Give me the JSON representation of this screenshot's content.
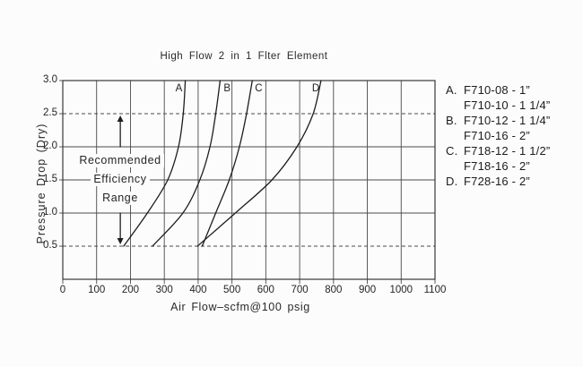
{
  "chart_data": {
    "type": "line",
    "title": "High Flow 2 in 1 Flter Element",
    "xlabel": "Air Flow–scfm@100 psig",
    "ylabel": "Pressure Drop (Dry)",
    "xlim": [
      0,
      1100
    ],
    "ylim": [
      0,
      3
    ],
    "grid": true,
    "legend_position": "right",
    "x_ticks": [
      0,
      100,
      200,
      300,
      400,
      500,
      600,
      700,
      800,
      900,
      1000,
      1100
    ],
    "y_ticks": [
      {
        "value": 0.5,
        "label": "0.5"
      },
      {
        "value": 1.0,
        "label": "1.0"
      },
      {
        "value": 1.5,
        "label": "1.5"
      },
      {
        "value": 2.0,
        "label": "2.0"
      },
      {
        "value": 2.5,
        "label": "2.5"
      },
      {
        "value": 3.0,
        "label": "3.0"
      }
    ],
    "y_gridlines": [
      {
        "value": 0.5,
        "style": "dashed"
      },
      {
        "value": 1.0,
        "style": "solid"
      },
      {
        "value": 1.5,
        "style": "solid"
      },
      {
        "value": 2.0,
        "style": "solid"
      },
      {
        "value": 2.5,
        "style": "dashed"
      }
    ],
    "series": [
      {
        "name": "A",
        "label_dx": -11,
        "points": [
          [
            180,
            0.5
          ],
          [
            250,
            1.0
          ],
          [
            310,
            1.5
          ],
          [
            342,
            2.0
          ],
          [
            356,
            2.5
          ],
          [
            362,
            3.0
          ]
        ]
      },
      {
        "name": "B",
        "label_dx": 4,
        "points": [
          [
            265,
            0.5
          ],
          [
            355,
            1.0
          ],
          [
            405,
            1.5
          ],
          [
            435,
            2.0
          ],
          [
            452,
            2.5
          ],
          [
            465,
            3.0
          ]
        ]
      },
      {
        "name": "C",
        "label_dx": 3,
        "points": [
          [
            412,
            0.5
          ],
          [
            452,
            1.0
          ],
          [
            492,
            1.5
          ],
          [
            522,
            2.0
          ],
          [
            543,
            2.5
          ],
          [
            560,
            3.0
          ]
        ]
      },
      {
        "name": "D",
        "label_dx": -10,
        "points": [
          [
            398,
            0.5
          ],
          [
            510,
            1.0
          ],
          [
            618,
            1.5
          ],
          [
            692,
            2.0
          ],
          [
            740,
            2.5
          ],
          [
            763,
            3.0
          ]
        ]
      }
    ],
    "annotation": {
      "x": 170,
      "range": [
        0.5,
        2.5
      ],
      "lines": [
        "Recommended",
        "Efficiency",
        "Range"
      ]
    }
  },
  "legend": {
    "items": [
      {
        "key": "A.",
        "model": "F710-08 - 1”"
      },
      {
        "key": "",
        "model": "F710-10 - 1 1/4”"
      },
      {
        "key": "B.",
        "model": "F710-12 - 1 1/4”"
      },
      {
        "key": "",
        "model": "F710-16 - 2”"
      },
      {
        "key": "C.",
        "model": "F718-12 - 1 1/2”"
      },
      {
        "key": "",
        "model": "F718-16 - 2”"
      },
      {
        "key": "D.",
        "model": "F728-16 - 2”"
      }
    ]
  },
  "colors": {
    "background": "#fcfcfc",
    "ink": "#1f1f1f",
    "grid": "#4a4a4a",
    "curve": "#1d1d1d"
  }
}
